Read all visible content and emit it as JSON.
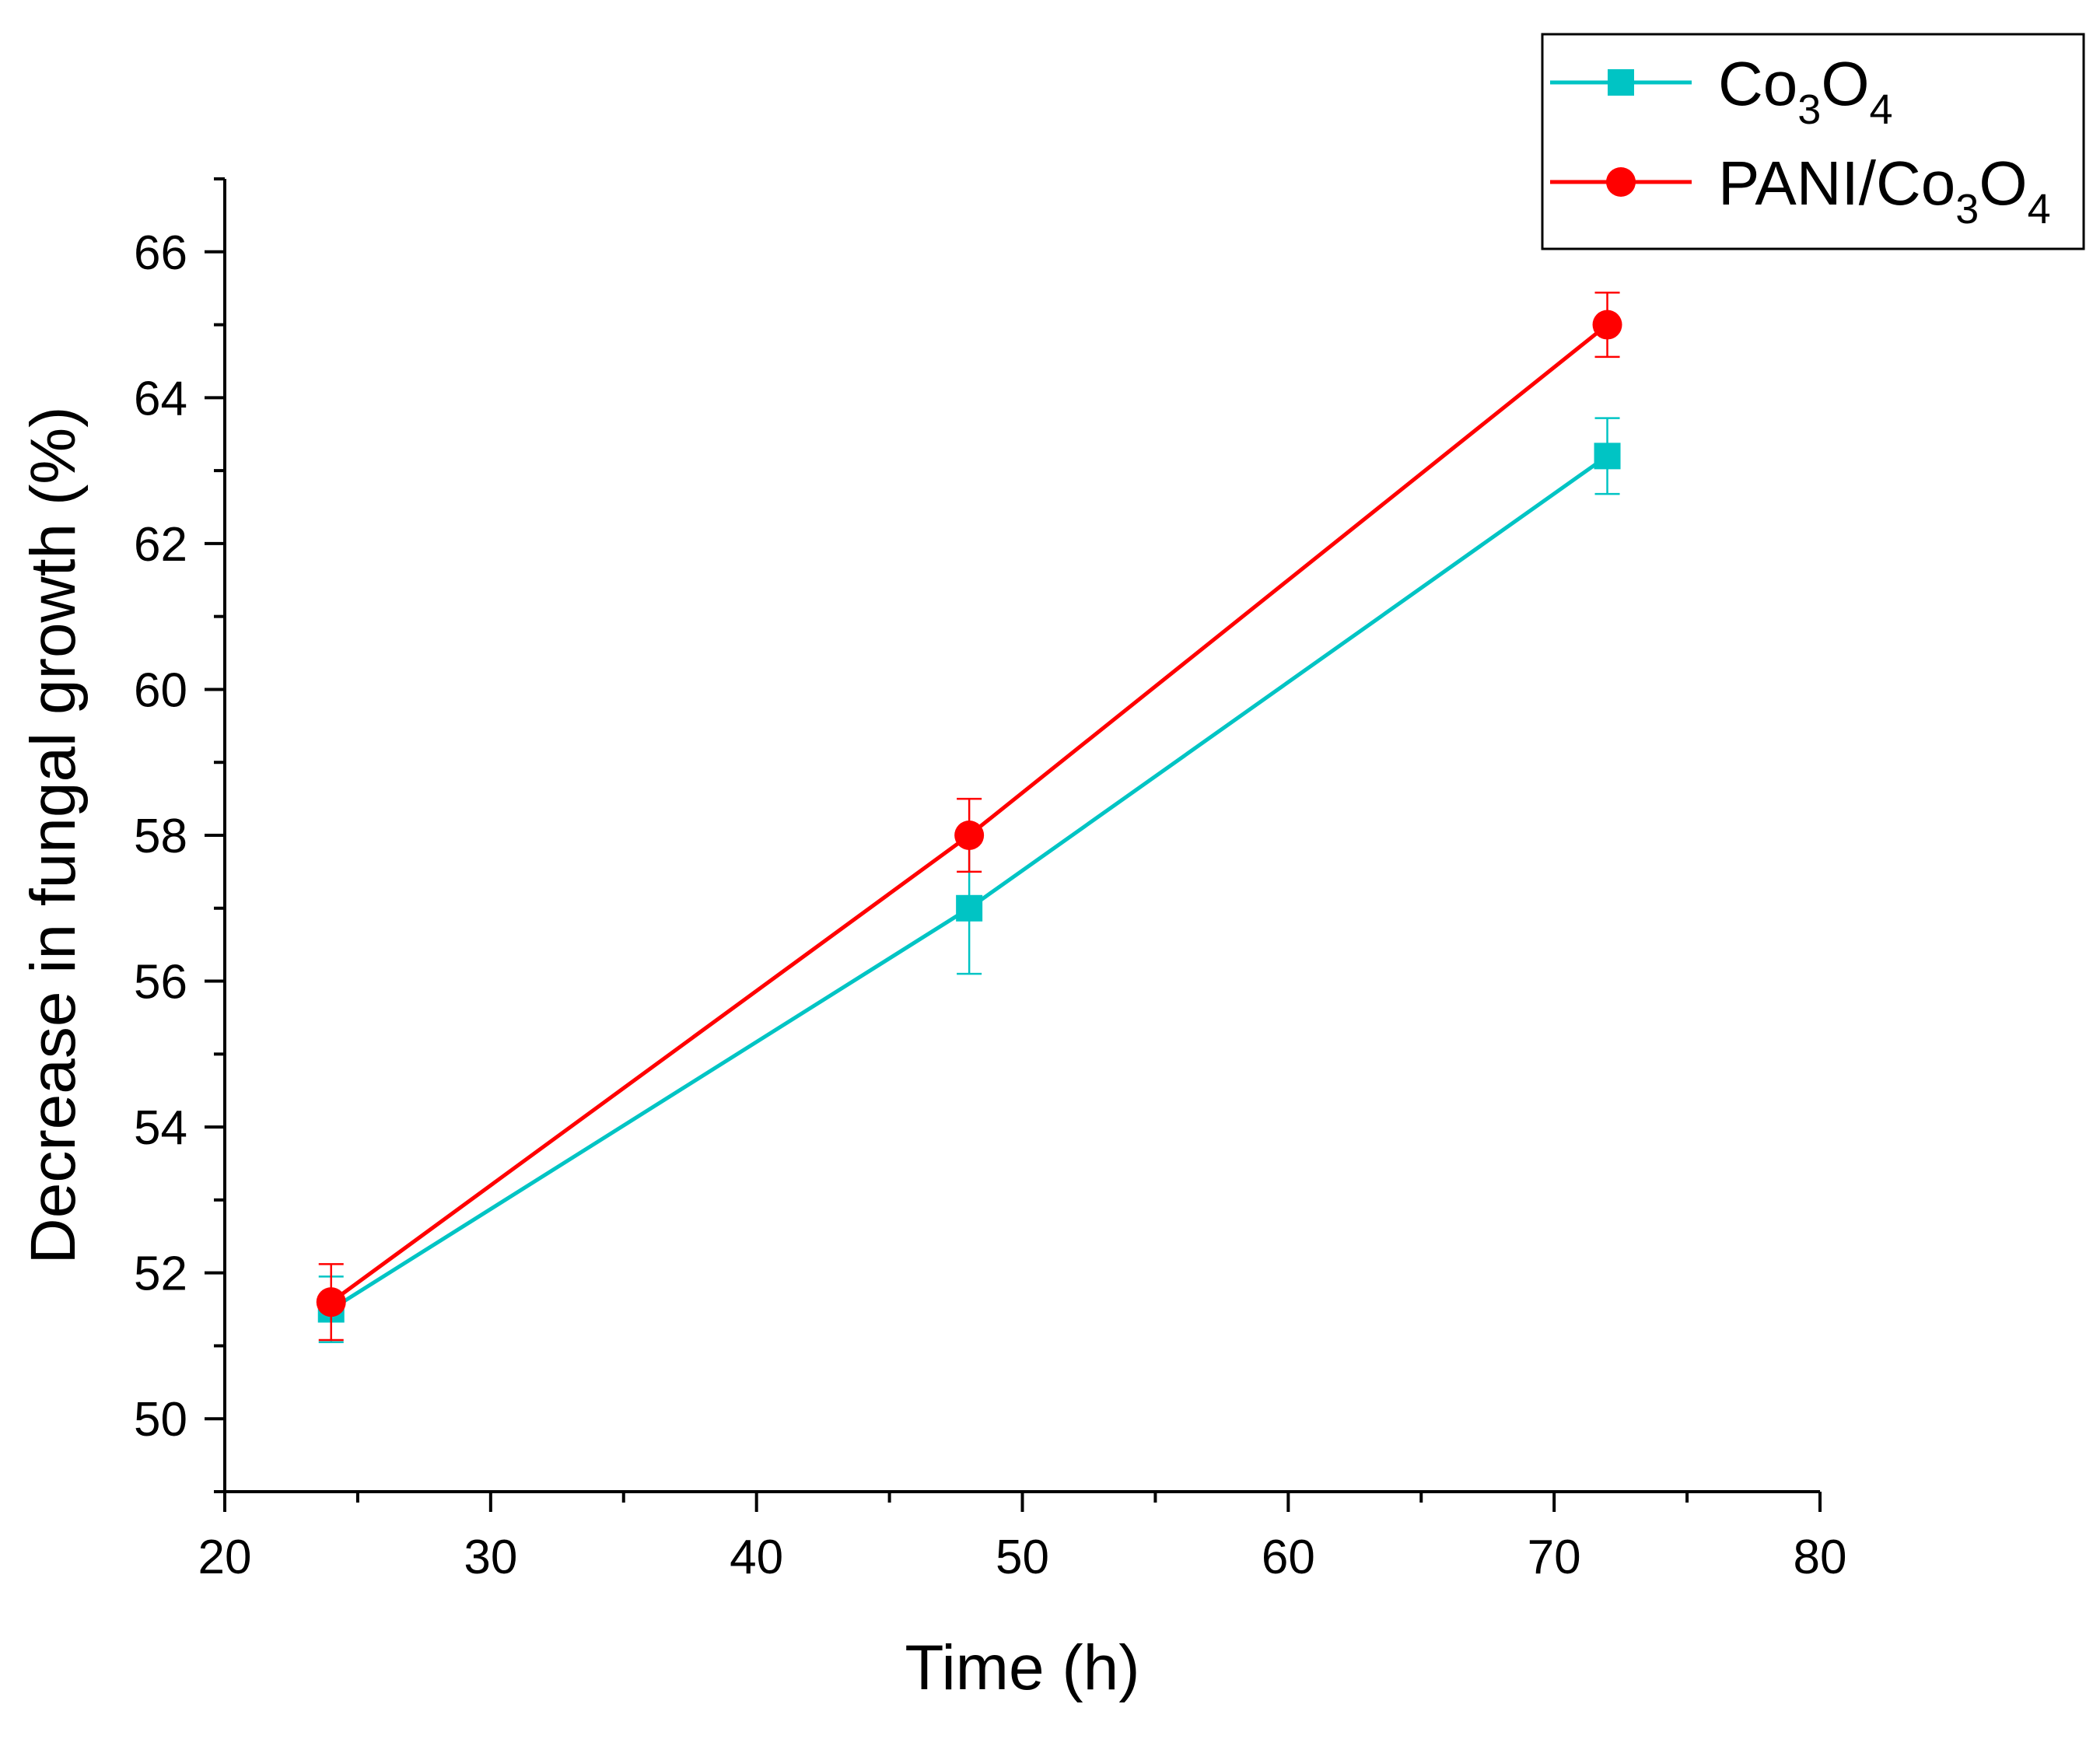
{
  "chart_data": {
    "type": "line",
    "title": "",
    "xlabel": "Time (h)",
    "ylabel": "Decrease in fungal growth (%)",
    "xlim": [
      20,
      80
    ],
    "ylim": [
      49,
      67
    ],
    "xticks": [
      20,
      30,
      40,
      50,
      60,
      70,
      80
    ],
    "yticks": [
      50,
      52,
      54,
      56,
      58,
      60,
      62,
      64,
      66
    ],
    "x_tick_labels": [
      "20",
      "30",
      "40",
      "50",
      "60",
      "70",
      "80"
    ],
    "y_tick_labels": [
      "50",
      "52",
      "54",
      "56",
      "58",
      "60",
      "62",
      "64",
      "66"
    ],
    "legend_position": "top-right",
    "series": [
      {
        "name": "Co3O4",
        "label_parts": [
          [
            "Co",
            ""
          ],
          [
            "3",
            "sub"
          ],
          [
            "O",
            ""
          ],
          [
            "4",
            "sub"
          ]
        ],
        "color": "#00c4c4",
        "marker": "square",
        "x": [
          24,
          48,
          72
        ],
        "values": [
          51.5,
          57.0,
          63.2
        ],
        "errors": [
          0.45,
          0.9,
          0.52
        ]
      },
      {
        "name": "PANI/Co3O4",
        "label_parts": [
          [
            "PANI/Co",
            ""
          ],
          [
            "3",
            "sub"
          ],
          [
            "O",
            ""
          ],
          [
            "4",
            "sub"
          ]
        ],
        "color": "#ff0000",
        "marker": "circle",
        "x": [
          24,
          48,
          72
        ],
        "values": [
          51.6,
          58.0,
          65.0
        ],
        "errors": [
          0.52,
          0.5,
          0.44
        ]
      }
    ]
  }
}
